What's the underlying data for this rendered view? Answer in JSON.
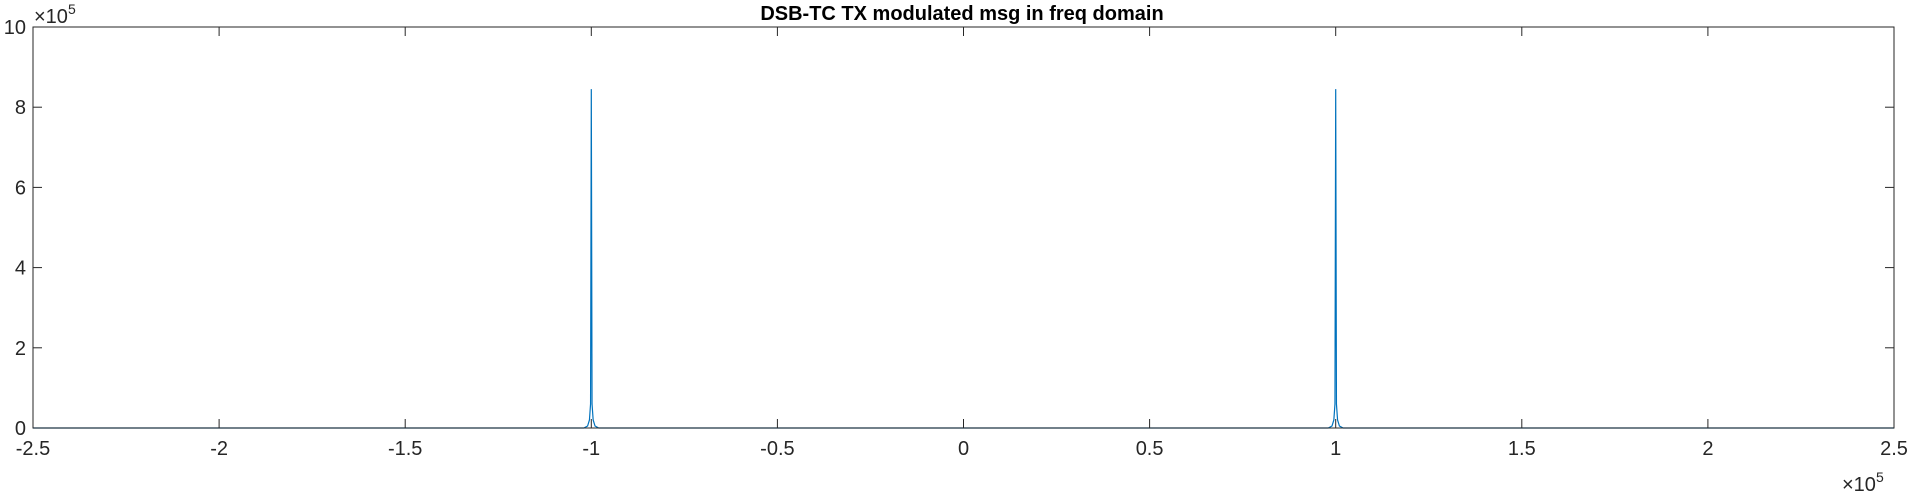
{
  "chart_data": {
    "type": "line",
    "title": "DSB-TC TX modulated msg in freq domain",
    "xlabel": "",
    "ylabel": "",
    "xlim": [
      -250000,
      250000
    ],
    "ylim": [
      0,
      1000000
    ],
    "x_ticks": [
      -250000,
      -200000,
      -150000,
      -100000,
      -50000,
      0,
      50000,
      100000,
      150000,
      200000,
      250000
    ],
    "x_tick_labels": [
      "-2.5",
      "-2",
      "-1.5",
      "-1",
      "-0.5",
      "0",
      "0.5",
      "1",
      "1.5",
      "2",
      "2.5"
    ],
    "y_ticks": [
      0,
      200000,
      400000,
      600000,
      800000,
      1000000
    ],
    "y_tick_labels": [
      "0",
      "2",
      "4",
      "6",
      "8",
      "10"
    ],
    "x_exponent_base": "×10",
    "x_exponent_power": "5",
    "y_exponent_base": "×10",
    "y_exponent_power": "5",
    "grid": false,
    "series": [
      {
        "color": "#0072BD",
        "x": [
          -250000,
          -102000,
          -101000,
          -100500,
          -100200,
          -100000,
          -99800,
          -99500,
          -99000,
          -98000,
          98000,
          99000,
          99500,
          99800,
          100000,
          100200,
          100500,
          101000,
          102000,
          250000
        ],
        "y": [
          0,
          0,
          5000,
          20000,
          60000,
          845000,
          60000,
          20000,
          5000,
          0,
          0,
          5000,
          20000,
          60000,
          845000,
          60000,
          20000,
          5000,
          0,
          0
        ]
      }
    ]
  }
}
